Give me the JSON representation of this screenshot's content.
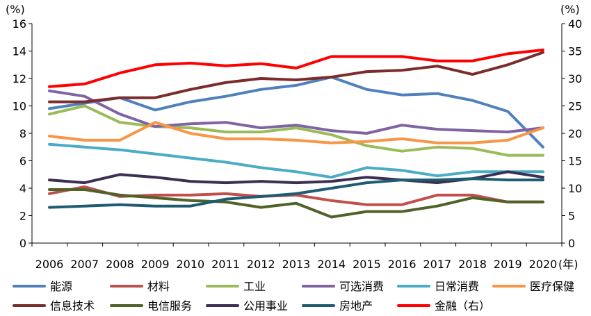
{
  "chart_data": {
    "type": "line",
    "title": "",
    "left_axis_unit": "(%)",
    "right_axis_unit": "(%)",
    "x_unit": "(年)",
    "categories": [
      "2006",
      "2007",
      "2008",
      "2009",
      "2010",
      "2011",
      "2012",
      "2013",
      "2014",
      "2015",
      "2016",
      "2017",
      "2018",
      "2019",
      "2020"
    ],
    "left_ylim": [
      0,
      16
    ],
    "left_ticks": [
      "0",
      "2",
      "4",
      "6",
      "8",
      "10",
      "12",
      "14",
      "16"
    ],
    "right_ylim": [
      0,
      40
    ],
    "right_ticks": [
      "0",
      "5",
      "10",
      "15",
      "20",
      "25",
      "30",
      "35",
      "40"
    ],
    "grid": false,
    "legend_position": "bottom",
    "series": [
      {
        "name": "能源",
        "color": "#4f81bd",
        "axis": "left",
        "values": [
          9.8,
          10.2,
          10.6,
          9.7,
          10.3,
          10.7,
          11.2,
          11.5,
          12.1,
          11.2,
          10.8,
          10.9,
          10.4,
          9.6,
          7.0
        ]
      },
      {
        "name": "材料",
        "color": "#c0504d",
        "axis": "left",
        "values": [
          3.6,
          4.1,
          3.4,
          3.5,
          3.5,
          3.6,
          3.4,
          3.5,
          3.1,
          2.8,
          2.8,
          3.5,
          3.5,
          3.0,
          3.0
        ]
      },
      {
        "name": "工业",
        "color": "#9bbb59",
        "axis": "left",
        "values": [
          9.4,
          10.0,
          8.8,
          8.5,
          8.4,
          8.1,
          8.1,
          8.4,
          7.9,
          7.1,
          6.7,
          7.0,
          6.9,
          6.4,
          6.4
        ]
      },
      {
        "name": "可选消费",
        "color": "#8064a2",
        "axis": "left",
        "values": [
          11.1,
          10.7,
          9.4,
          8.5,
          8.7,
          8.8,
          8.4,
          8.6,
          8.2,
          8.0,
          8.6,
          8.3,
          8.2,
          8.1,
          8.4
        ]
      },
      {
        "name": "日常消费",
        "color": "#4bacc6",
        "axis": "left",
        "values": [
          7.2,
          7.0,
          6.8,
          6.5,
          6.2,
          5.9,
          5.5,
          5.2,
          4.8,
          5.5,
          5.3,
          4.9,
          5.2,
          5.2,
          5.2
        ]
      },
      {
        "name": "医疗保健",
        "color": "#f79646",
        "axis": "left",
        "values": [
          7.8,
          7.5,
          7.5,
          8.8,
          8.0,
          7.6,
          7.6,
          7.5,
          7.3,
          7.4,
          7.6,
          7.3,
          7.3,
          7.5,
          8.4
        ]
      },
      {
        "name": "信息技术",
        "color": "#7b2c2c",
        "axis": "left",
        "values": [
          10.3,
          10.3,
          10.6,
          10.6,
          11.2,
          11.7,
          12.0,
          11.9,
          12.1,
          12.5,
          12.6,
          12.9,
          12.3,
          13.0,
          13.9
        ]
      },
      {
        "name": "电信服务",
        "color": "#4f6228",
        "axis": "left",
        "values": [
          3.9,
          3.9,
          3.5,
          3.3,
          3.1,
          3.0,
          2.6,
          2.9,
          1.9,
          2.3,
          2.3,
          2.7,
          3.3,
          3.0,
          3.0
        ]
      },
      {
        "name": "公用事业",
        "color": "#3b2f52",
        "axis": "left",
        "values": [
          4.6,
          4.4,
          5.0,
          4.8,
          4.5,
          4.4,
          4.5,
          4.4,
          4.5,
          4.8,
          4.6,
          4.4,
          4.7,
          5.2,
          4.8
        ]
      },
      {
        "name": "房地产",
        "color": "#1f5c72",
        "axis": "left",
        "values": [
          2.6,
          2.7,
          2.8,
          2.7,
          2.7,
          3.2,
          3.4,
          3.6,
          4.0,
          4.4,
          4.6,
          4.6,
          4.7,
          4.6,
          4.6
        ]
      },
      {
        "name": "金融（右）",
        "color": "#ff0000",
        "axis": "right",
        "values": [
          28.5,
          29.0,
          31.0,
          32.5,
          32.8,
          32.3,
          32.7,
          31.9,
          34.0,
          34.0,
          34.0,
          33.2,
          33.2,
          34.5,
          35.2
        ]
      }
    ]
  }
}
